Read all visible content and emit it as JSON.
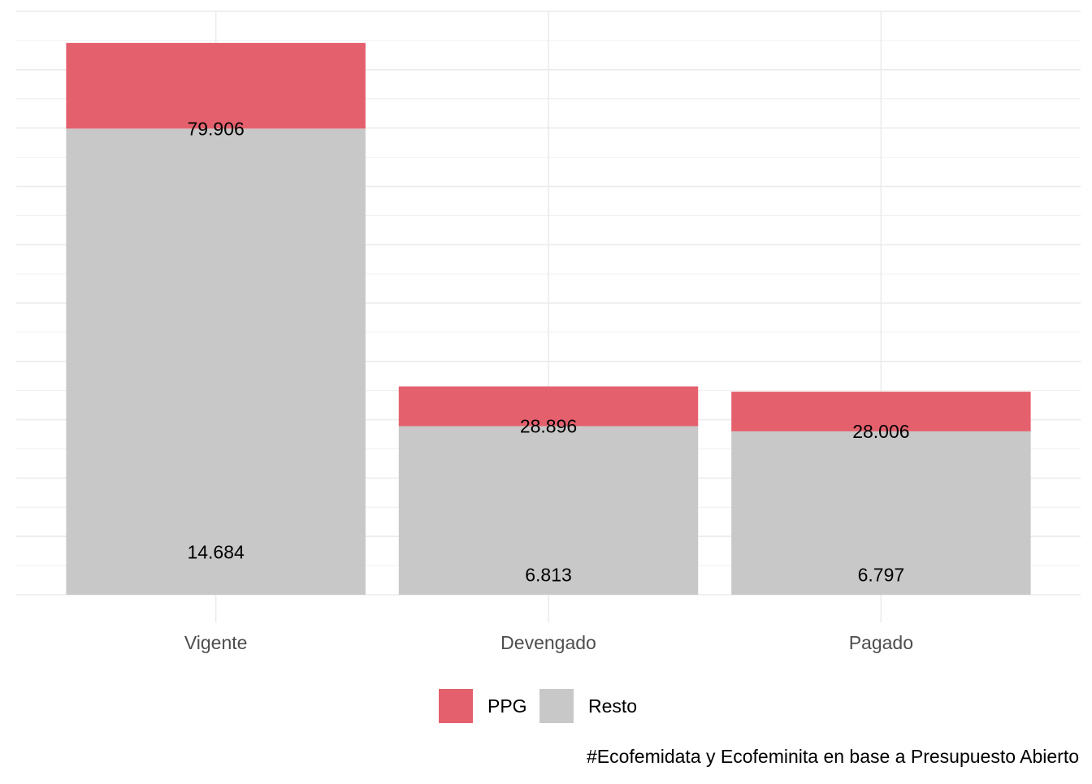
{
  "chart_data": {
    "type": "bar",
    "stacked": true,
    "categories": [
      "Vigente",
      "Devengado",
      "Pagado"
    ],
    "series": [
      {
        "name": "Resto",
        "values": [
          79906,
          28896,
          28006
        ],
        "labels": [
          "79.906",
          "28.896",
          "28.006"
        ],
        "color": "#c8c8c8"
      },
      {
        "name": "PPG",
        "values": [
          14684,
          6813,
          6797
        ],
        "labels": [
          "14.684",
          "6.813",
          "6.797"
        ],
        "color": "#e5606d"
      }
    ],
    "title": "",
    "xlabel": "",
    "ylabel": "",
    "ylim": [
      0,
      100000
    ],
    "grid": true,
    "legend": {
      "position": "bottom",
      "entries": [
        "PPG",
        "Resto"
      ]
    },
    "caption": "#Ecofemidata y Ecofeminita en base a Presupuesto Abierto"
  }
}
